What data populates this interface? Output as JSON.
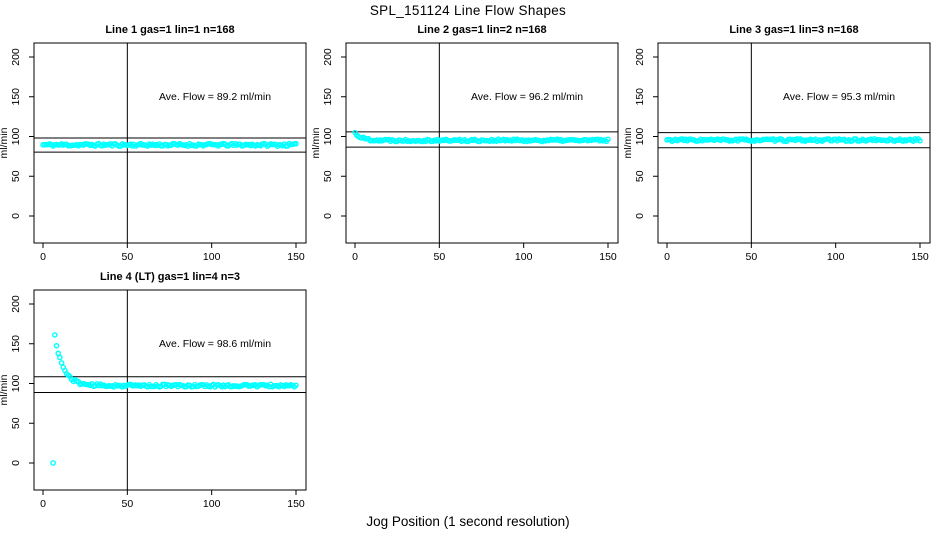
{
  "page": {
    "title": "SPL_151124  Line Flow Shapes",
    "xlabel": "Jog Position (1 second resolution)"
  },
  "colors": {
    "point": "#00FFFF",
    "axis": "#000000",
    "background": "#FFFFFF"
  },
  "chart_data": [
    {
      "type": "scatter",
      "title": "Line 1 gas=1 lin=1 n=168",
      "annotation": "Ave. Flow =  89.2  ml/min",
      "ave_flow_ml_min": 89.2,
      "ylabel": "ml/min",
      "xlim": [
        0,
        150
      ],
      "ylim": [
        0,
        200
      ],
      "xticks": [
        0,
        50,
        100,
        150
      ],
      "yticks": [
        0,
        50,
        100,
        150,
        200
      ],
      "vline_x": 50,
      "hlines_y": [
        98.1,
        80.3
      ],
      "grid": "off",
      "legend": "none",
      "annotation_pos": {
        "x": 102,
        "y": 150
      },
      "series": {
        "name": "flow",
        "x_start": 0,
        "x_end": 150,
        "x_step": 1,
        "start_y": 89.5,
        "settle_y": 89.5,
        "decay_tau": 1,
        "noise": 1.7,
        "seed": 11,
        "outliers": []
      }
    },
    {
      "type": "scatter",
      "title": "Line 2 gas=1 lin=2 n=168",
      "annotation": "Ave. Flow =  96.2  ml/min",
      "ave_flow_ml_min": 96.2,
      "ylabel": "ml/min",
      "xlim": [
        0,
        150
      ],
      "ylim": [
        0,
        200
      ],
      "xticks": [
        0,
        50,
        100,
        150
      ],
      "yticks": [
        0,
        50,
        100,
        150,
        200
      ],
      "vline_x": 50,
      "hlines_y": [
        105.8,
        86.6
      ],
      "grid": "off",
      "legend": "none",
      "annotation_pos": {
        "x": 102,
        "y": 150
      },
      "series": {
        "name": "flow",
        "x_start": 0,
        "x_end": 150,
        "x_step": 1,
        "start_y": 104.5,
        "settle_y": 95.2,
        "decay_tau": 4,
        "noise": 1.5,
        "seed": 22,
        "outliers": []
      }
    },
    {
      "type": "scatter",
      "title": "Line 3 gas=1 lin=3 n=168",
      "annotation": "Ave. Flow =  95.3  ml/min",
      "ave_flow_ml_min": 95.3,
      "ylabel": "ml/min",
      "xlim": [
        0,
        150
      ],
      "ylim": [
        0,
        200
      ],
      "xticks": [
        0,
        50,
        100,
        150
      ],
      "yticks": [
        0,
        50,
        100,
        150,
        200
      ],
      "vline_x": 50,
      "hlines_y": [
        104.8,
        85.8
      ],
      "grid": "off",
      "legend": "none",
      "annotation_pos": {
        "x": 102,
        "y": 150
      },
      "series": {
        "name": "flow",
        "x_start": 0,
        "x_end": 150,
        "x_step": 1,
        "start_y": 95.5,
        "settle_y": 95.5,
        "decay_tau": 1,
        "noise": 1.5,
        "seed": 33,
        "outliers": []
      }
    },
    {
      "type": "scatter",
      "title": "Line 4 (LT) gas=1 lin=4 n=3",
      "annotation": "Ave. Flow =  98.6  ml/min",
      "ave_flow_ml_min": 98.6,
      "ylabel": "ml/min",
      "xlim": [
        0,
        150
      ],
      "ylim": [
        0,
        200
      ],
      "xticks": [
        0,
        50,
        100,
        150
      ],
      "yticks": [
        0,
        50,
        100,
        150,
        200
      ],
      "vline_x": 50,
      "hlines_y": [
        108.5,
        88.7
      ],
      "grid": "off",
      "legend": "none",
      "annotation_pos": {
        "x": 102,
        "y": 150
      },
      "series": {
        "name": "flow",
        "x_start": 7,
        "x_end": 150,
        "x_step": 1,
        "start_y": 160,
        "settle_y": 97.3,
        "decay_tau": 5,
        "noise": 1.7,
        "seed": 44,
        "outliers": [
          [
            6,
            0
          ]
        ]
      }
    }
  ]
}
